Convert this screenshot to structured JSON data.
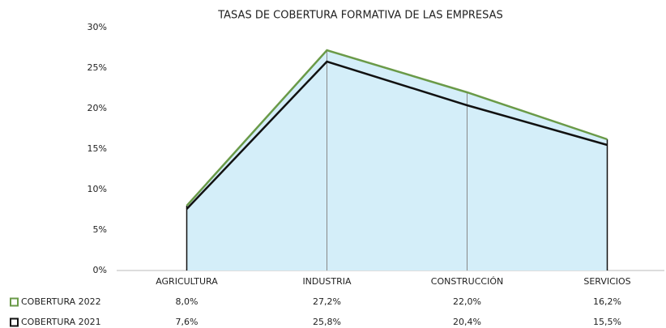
{
  "chart_data": {
    "type": "area",
    "title": "TASAS DE COBERTURA FORMATIVA DE LAS EMPRESAS",
    "categories": [
      "AGRICULTURA",
      "INDUSTRIA",
      "CONSTRUCCIÓN",
      "SERVICIOS"
    ],
    "series": [
      {
        "name": "COBERTURA 2022",
        "color": "#6a9a48",
        "fill": "#d4eef9",
        "values": [
          8.0,
          27.2,
          22.0,
          16.2
        ],
        "value_labels": [
          "8,0%",
          "27,2%",
          "22,0%",
          "16,2%"
        ]
      },
      {
        "name": "COBERTURA 2021",
        "color": "#111111",
        "values": [
          7.6,
          25.8,
          20.4,
          15.5
        ],
        "value_labels": [
          "7,6%",
          "25,8%",
          "20,4%",
          "15,5%"
        ]
      }
    ],
    "ylim": [
      0,
      30
    ],
    "yticks": [
      {
        "value": 0,
        "label": "0%"
      },
      {
        "value": 5,
        "label": "5%"
      },
      {
        "value": 10,
        "label": "10%"
      },
      {
        "value": 15,
        "label": "15%"
      },
      {
        "value": 20,
        "label": "20%"
      },
      {
        "value": 25,
        "label": "25%"
      },
      {
        "value": 30,
        "label": "30%"
      }
    ],
    "grid": false
  }
}
